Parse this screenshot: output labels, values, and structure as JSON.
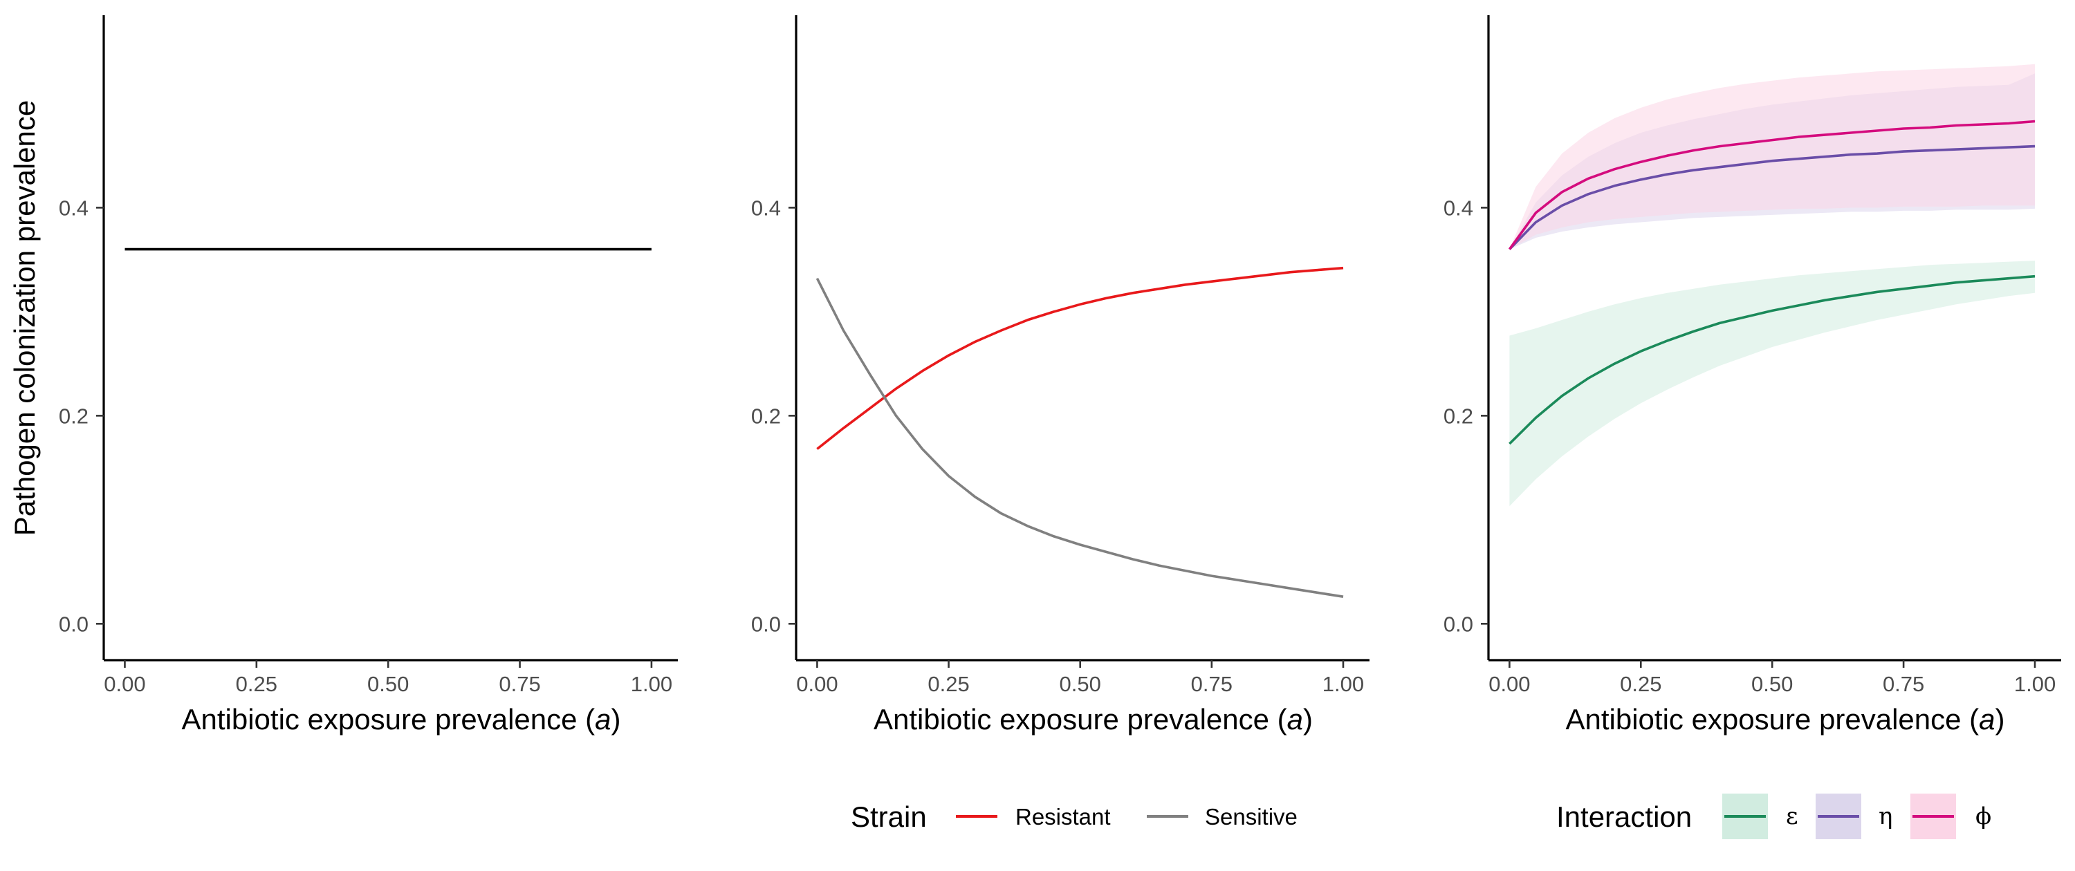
{
  "chart_data": [
    {
      "type": "line",
      "panel": "left",
      "xlabel_main": "Antibiotic exposure prevalence (",
      "xlabel_var": "a",
      "xlabel_end": ")",
      "ylabel": "Pathogen colonization prevalence",
      "xlim": [
        -0.04,
        1.05
      ],
      "ylim": [
        -0.035,
        0.585
      ],
      "xticks": [
        0,
        0.25,
        0.5,
        0.75,
        1
      ],
      "xtick_labels": [
        "0.00",
        "0.25",
        "0.50",
        "0.75",
        "1.00"
      ],
      "yticks": [
        0,
        0.2,
        0.4
      ],
      "ytick_labels": [
        "0.0",
        "0.2",
        "0.4"
      ],
      "series": [
        {
          "color": "#000000",
          "x": [
            0,
            1
          ],
          "y": [
            0.36,
            0.36
          ]
        }
      ]
    },
    {
      "type": "line",
      "panel": "middle",
      "xlabel_main": "Antibiotic exposure prevalence (",
      "xlabel_var": "a",
      "xlabel_end": ")",
      "xlim": [
        -0.04,
        1.05
      ],
      "ylim": [
        -0.035,
        0.585
      ],
      "xticks": [
        0,
        0.25,
        0.5,
        0.75,
        1
      ],
      "xtick_labels": [
        "0.00",
        "0.25",
        "0.50",
        "0.75",
        "1.00"
      ],
      "yticks": [
        0,
        0.2,
        0.4
      ],
      "ytick_labels": [
        "0.0",
        "0.2",
        "0.4"
      ],
      "legend": {
        "title": "Strain",
        "position": "bottom"
      },
      "series": [
        {
          "name": "Resistant",
          "color": "#e8191b",
          "x": [
            0,
            0.05,
            0.1,
            0.15,
            0.2,
            0.25,
            0.3,
            0.35,
            0.4,
            0.45,
            0.5,
            0.55,
            0.6,
            0.65,
            0.7,
            0.75,
            0.8,
            0.85,
            0.9,
            0.95,
            1
          ],
          "y": [
            0.168,
            0.188,
            0.207,
            0.226,
            0.243,
            0.258,
            0.271,
            0.282,
            0.292,
            0.3,
            0.307,
            0.313,
            0.318,
            0.322,
            0.326,
            0.329,
            0.332,
            0.335,
            0.338,
            0.34,
            0.342
          ]
        },
        {
          "name": "Sensitive",
          "color": "#808080",
          "x": [
            0,
            0.05,
            0.1,
            0.15,
            0.2,
            0.25,
            0.3,
            0.35,
            0.4,
            0.45,
            0.5,
            0.55,
            0.6,
            0.65,
            0.7,
            0.75,
            0.8,
            0.85,
            0.9,
            0.95,
            1
          ],
          "y": [
            0.332,
            0.282,
            0.24,
            0.2,
            0.168,
            0.142,
            0.122,
            0.106,
            0.094,
            0.084,
            0.076,
            0.069,
            0.062,
            0.056,
            0.051,
            0.046,
            0.042,
            0.038,
            0.034,
            0.03,
            0.026
          ]
        }
      ]
    },
    {
      "type": "area",
      "panel": "right",
      "xlabel_main": "Antibiotic exposure prevalence (",
      "xlabel_var": "a",
      "xlabel_end": ")",
      "xlim": [
        -0.04,
        1.05
      ],
      "ylim": [
        -0.035,
        0.585
      ],
      "xticks": [
        0,
        0.25,
        0.5,
        0.75,
        1
      ],
      "xtick_labels": [
        "0.00",
        "0.25",
        "0.50",
        "0.75",
        "1.00"
      ],
      "yticks": [
        0,
        0.2,
        0.4
      ],
      "ytick_labels": [
        "0.0",
        "0.2",
        "0.4"
      ],
      "legend": {
        "title": "Interaction",
        "position": "bottom"
      },
      "series": [
        {
          "name": "ε",
          "color": "#1b8a5a",
          "fill": "#d1ece0",
          "x": [
            0,
            0.05,
            0.1,
            0.15,
            0.2,
            0.25,
            0.3,
            0.35,
            0.4,
            0.45,
            0.5,
            0.55,
            0.6,
            0.65,
            0.7,
            0.75,
            0.8,
            0.85,
            0.9,
            0.95,
            1
          ],
          "y": [
            0.173,
            0.198,
            0.219,
            0.236,
            0.25,
            0.262,
            0.272,
            0.281,
            0.289,
            0.295,
            0.301,
            0.306,
            0.311,
            0.315,
            0.319,
            0.322,
            0.325,
            0.328,
            0.33,
            0.332,
            0.334
          ],
          "lower": [
            0.113,
            0.139,
            0.161,
            0.18,
            0.197,
            0.212,
            0.225,
            0.237,
            0.248,
            0.257,
            0.266,
            0.273,
            0.28,
            0.286,
            0.292,
            0.297,
            0.302,
            0.307,
            0.311,
            0.315,
            0.318
          ],
          "upper": [
            0.277,
            0.284,
            0.292,
            0.3,
            0.307,
            0.313,
            0.318,
            0.322,
            0.326,
            0.329,
            0.332,
            0.335,
            0.337,
            0.339,
            0.341,
            0.343,
            0.345,
            0.346,
            0.347,
            0.348,
            0.349
          ]
        },
        {
          "name": "η",
          "color": "#6a4ea8",
          "fill": "#dcd6ec",
          "x": [
            0,
            0.05,
            0.1,
            0.15,
            0.2,
            0.25,
            0.3,
            0.35,
            0.4,
            0.45,
            0.5,
            0.55,
            0.6,
            0.65,
            0.7,
            0.75,
            0.8,
            0.85,
            0.9,
            0.95,
            1
          ],
          "y": [
            0.36,
            0.386,
            0.402,
            0.413,
            0.421,
            0.427,
            0.432,
            0.436,
            0.439,
            0.442,
            0.445,
            0.447,
            0.449,
            0.451,
            0.452,
            0.454,
            0.455,
            0.456,
            0.457,
            0.458,
            0.459
          ],
          "lower": [
            0.36,
            0.371,
            0.377,
            0.381,
            0.384,
            0.386,
            0.388,
            0.39,
            0.391,
            0.392,
            0.393,
            0.394,
            0.395,
            0.396,
            0.396,
            0.397,
            0.397,
            0.398,
            0.398,
            0.398,
            0.399
          ],
          "upper": [
            0.36,
            0.405,
            0.431,
            0.449,
            0.462,
            0.472,
            0.479,
            0.485,
            0.49,
            0.495,
            0.499,
            0.502,
            0.505,
            0.508,
            0.51,
            0.512,
            0.514,
            0.516,
            0.517,
            0.518,
            0.529
          ]
        },
        {
          "name": "ϕ",
          "color": "#d40c7e",
          "fill": "#fbd5e6",
          "x": [
            0,
            0.05,
            0.1,
            0.15,
            0.2,
            0.25,
            0.3,
            0.35,
            0.4,
            0.45,
            0.5,
            0.55,
            0.6,
            0.65,
            0.7,
            0.75,
            0.8,
            0.85,
            0.9,
            0.95,
            1
          ],
          "y": [
            0.36,
            0.395,
            0.415,
            0.428,
            0.437,
            0.444,
            0.45,
            0.455,
            0.459,
            0.462,
            0.465,
            0.468,
            0.47,
            0.472,
            0.474,
            0.476,
            0.477,
            0.479,
            0.48,
            0.481,
            0.483
          ],
          "lower": [
            0.36,
            0.374,
            0.381,
            0.386,
            0.389,
            0.391,
            0.393,
            0.395,
            0.396,
            0.397,
            0.398,
            0.399,
            0.399,
            0.4,
            0.4,
            0.401,
            0.401,
            0.401,
            0.402,
            0.402,
            0.402
          ],
          "upper": [
            0.36,
            0.42,
            0.452,
            0.472,
            0.486,
            0.496,
            0.504,
            0.51,
            0.515,
            0.519,
            0.522,
            0.525,
            0.527,
            0.529,
            0.531,
            0.532,
            0.533,
            0.534,
            0.535,
            0.536,
            0.538
          ]
        }
      ]
    }
  ]
}
